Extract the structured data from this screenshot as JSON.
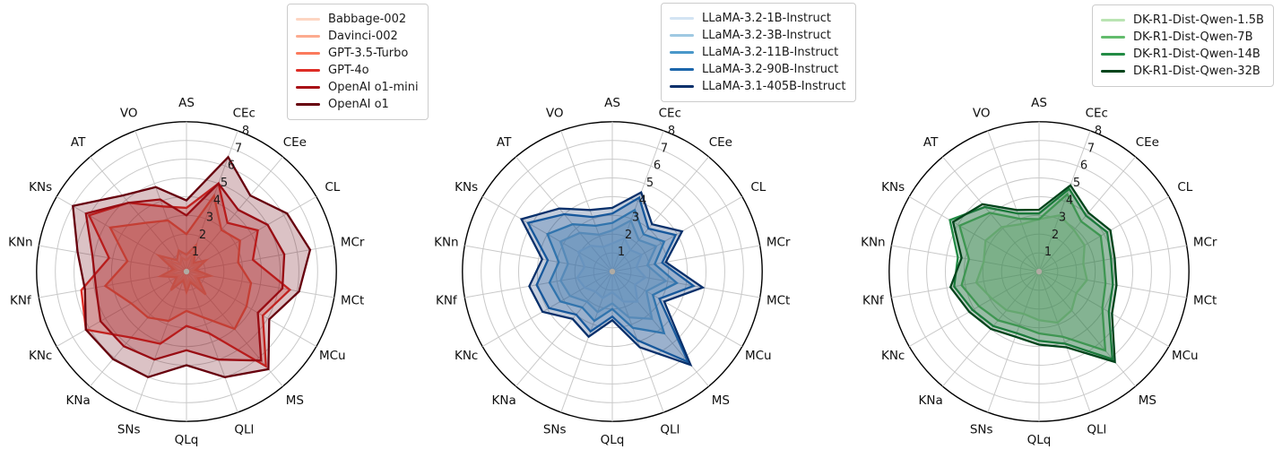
{
  "figure": {
    "description": "Three radar charts comparing model families across 18 evaluation axes",
    "grid_color": "#c9c9c9",
    "outer_ring_color": "#000000",
    "background": "#ffffff"
  },
  "chart_data": [
    {
      "id": "openai",
      "type": "line",
      "variant": "radar-polar",
      "legend_position": "top",
      "grid": true,
      "r_min": 0,
      "r_max": 8,
      "r_ticks": [
        "1",
        "2",
        "3",
        "4",
        "5",
        "6",
        "7",
        "8"
      ],
      "axes": [
        "AS",
        "CEc",
        "CEe",
        "CL",
        "MCr",
        "MCt",
        "MCu",
        "MS",
        "QLl",
        "QLq",
        "SNs",
        "KNa",
        "KNc",
        "KNf",
        "KNn",
        "KNs",
        "AT",
        "VO"
      ],
      "series": [
        {
          "name": "Babbage-002",
          "color": "#fdd5c2",
          "values": [
            0.6,
            1.0,
            0.4,
            0.8,
            0.3,
            0.9,
            0.5,
            1.1,
            0.4,
            0.8,
            0.3,
            0.9,
            0.4,
            1.0,
            0.5,
            1.2,
            0.5,
            0.8
          ]
        },
        {
          "name": "Davinci-002",
          "color": "#fcab8f",
          "values": [
            0.9,
            1.5,
            0.6,
            1.2,
            0.5,
            1.3,
            0.7,
            1.6,
            0.6,
            1.1,
            0.5,
            1.3,
            0.6,
            1.4,
            0.7,
            1.7,
            0.8,
            1.2
          ]
        },
        {
          "name": "GPT-3.5-Turbo",
          "color": "#fb7a5c",
          "values": [
            2.0,
            4.3,
            2.9,
            3.3,
            2.8,
            3.5,
            3.7,
            4.0,
            2.6,
            2.1,
            2.8,
            3.2,
            3.4,
            4.4,
            3.2,
            4.7,
            3.4,
            2.9
          ]
        },
        {
          "name": "GPT-4o",
          "color": "#de2d26",
          "values": [
            3.4,
            5.0,
            3.4,
            4.4,
            3.6,
            5.6,
            4.7,
            6.6,
            3.5,
            2.9,
            4.1,
            4.6,
            6.2,
            5.7,
            4.2,
            6.0,
            4.8,
            3.7
          ]
        },
        {
          "name": "OpenAI o1-mini",
          "color": "#a81016",
          "values": [
            3.0,
            5.0,
            4.3,
            5.0,
            5.3,
            5.2,
            4.4,
            6.2,
            5.0,
            4.2,
            5.0,
            5.2,
            5.3,
            4.9,
            5.1,
            6.2,
            4.8,
            4.1
          ]
        },
        {
          "name": "OpenAI o1",
          "color": "#67000d",
          "values": [
            3.8,
            6.5,
            5.3,
            6.2,
            6.7,
            6.1,
            5.1,
            6.8,
            6.0,
            5.0,
            6.0,
            6.1,
            6.2,
            5.5,
            5.9,
            7.0,
            5.3,
            4.8
          ]
        }
      ]
    },
    {
      "id": "llama",
      "type": "line",
      "variant": "radar-polar",
      "legend_position": "top",
      "grid": true,
      "r_min": 0,
      "r_max": 8,
      "r_ticks": [
        "1",
        "2",
        "3",
        "4",
        "5",
        "6",
        "7",
        "8"
      ],
      "axes": [
        "AS",
        "CEc",
        "CEe",
        "CL",
        "MCr",
        "MCt",
        "MCu",
        "MS",
        "QLl",
        "QLq",
        "SNs",
        "KNa",
        "KNc",
        "KNf",
        "KNn",
        "KNs",
        "AT",
        "VO"
      ],
      "series": [
        {
          "name": "LLaMA-3.2-1B-Instruct",
          "color": "#d3e4f3",
          "values": [
            1.5,
            1.9,
            1.5,
            1.8,
            1.3,
            1.8,
            1.4,
            2.1,
            1.7,
            1.1,
            1.5,
            1.4,
            1.7,
            1.9,
            1.5,
            2.1,
            1.8,
            1.4
          ]
        },
        {
          "name": "LLaMA-3.2-3B-Instruct",
          "color": "#9fc9e2",
          "values": [
            2.2,
            2.9,
            2.2,
            2.7,
            1.9,
            2.9,
            2.1,
            3.3,
            2.6,
            1.7,
            2.3,
            2.1,
            2.6,
            2.8,
            2.4,
            3.2,
            2.7,
            2.1
          ]
        },
        {
          "name": "LLaMA-3.2-11B-Instruct",
          "color": "#4997c9",
          "values": [
            2.6,
            3.5,
            2.6,
            3.2,
            2.3,
            3.5,
            2.5,
            4.3,
            3.2,
            2.0,
            2.8,
            2.5,
            3.2,
            3.4,
            2.9,
            4.0,
            3.3,
            2.6
          ]
        },
        {
          "name": "LLaMA-3.2-90B-Instruct",
          "color": "#1c66ab",
          "values": [
            3.1,
            4.2,
            3.0,
            3.9,
            2.7,
            4.4,
            2.9,
            6.3,
            3.9,
            2.4,
            3.4,
            3.0,
            3.9,
            4.1,
            3.5,
            5.2,
            4.0,
            3.1
          ]
        },
        {
          "name": "LLaMA-3.1-405B-Instruct",
          "color": "#08306b",
          "values": [
            3.4,
            4.5,
            3.3,
            4.3,
            2.9,
            4.9,
            3.2,
            6.5,
            4.3,
            2.6,
            3.7,
            3.3,
            4.3,
            4.5,
            3.8,
            5.6,
            4.4,
            3.5
          ]
        }
      ]
    },
    {
      "id": "deepseek-qwen",
      "type": "line",
      "variant": "radar-polar",
      "legend_position": "top",
      "grid": true,
      "r_min": 0,
      "r_max": 8,
      "r_ticks": [
        "1",
        "2",
        "3",
        "4",
        "5",
        "6",
        "7",
        "8"
      ],
      "axes": [
        "AS",
        "CEc",
        "CEe",
        "CL",
        "MCr",
        "MCt",
        "MCu",
        "MS",
        "QLl",
        "QLq",
        "SNs",
        "KNa",
        "KNc",
        "KNf",
        "KNn",
        "KNs",
        "AT",
        "VO"
      ],
      "series": [
        {
          "name": "DK-R1-Dist-Qwen-1.5B",
          "color": "#bae4b3",
          "values": [
            2.8,
            3.2,
            2.9,
            2.8,
            2.4,
            2.6,
            2.3,
            2.7,
            2.9,
            2.6,
            2.4,
            2.7,
            2.9,
            3.4,
            3.0,
            3.3,
            3.1,
            2.7
          ]
        },
        {
          "name": "DK-R1-Dist-Qwen-7B",
          "color": "#63bc6d",
          "values": [
            2.8,
            4.4,
            3.5,
            3.8,
            3.5,
            3.6,
            3.9,
            5.5,
            3.7,
            3.3,
            3.1,
            3.4,
            3.7,
            4.2,
            3.8,
            4.9,
            4.1,
            3.0
          ]
        },
        {
          "name": "DK-R1-Dist-Qwen-14B",
          "color": "#238b45",
          "values": [
            3.1,
            4.7,
            3.9,
            4.2,
            3.9,
            4.0,
            4.3,
            6.1,
            4.1,
            3.7,
            3.5,
            3.8,
            4.1,
            4.6,
            4.4,
            5.5,
            4.5,
            3.3
          ]
        },
        {
          "name": "DK-R1-Dist-Qwen-32B",
          "color": "#00441b",
          "values": [
            3.3,
            4.9,
            4.1,
            4.4,
            4.1,
            4.2,
            4.5,
            6.3,
            4.3,
            3.9,
            3.7,
            4.0,
            4.3,
            4.8,
            4.2,
            5.3,
            4.7,
            3.5
          ]
        }
      ]
    }
  ]
}
